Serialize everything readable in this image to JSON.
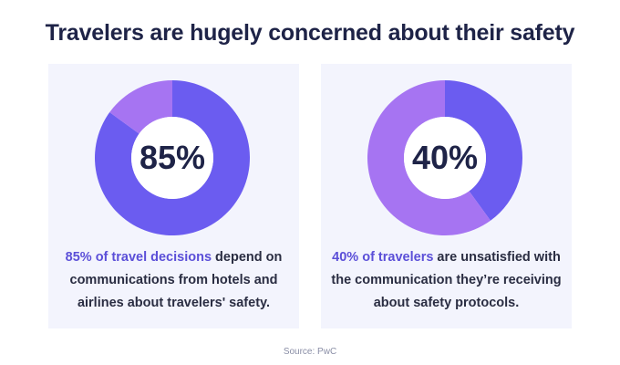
{
  "title": "Travelers are hugely concerned about their safety",
  "source": "Source: PwC",
  "colors": {
    "primary": "#6b5cf0",
    "secondary": "#a674f2",
    "card_bg": "#f3f4fd",
    "highlight_text": "#5b4fd8"
  },
  "chart_data": [
    {
      "type": "pie",
      "style": "donut",
      "center_label": "85%",
      "slices": [
        {
          "value": 85,
          "color": "#6b5cf0"
        },
        {
          "value": 15,
          "color": "#a674f2"
        }
      ],
      "caption": {
        "highlight": "85% of travel decisions",
        "rest": " depend on communications from hotels and airlines about travelers' safety."
      }
    },
    {
      "type": "pie",
      "style": "donut",
      "center_label": "40%",
      "slices": [
        {
          "value": 40,
          "color": "#6b5cf0"
        },
        {
          "value": 60,
          "color": "#a674f2"
        }
      ],
      "caption": {
        "highlight": "40% of travelers",
        "rest": " are unsatisfied with the communication they’re receiving about safety protocols."
      }
    }
  ]
}
